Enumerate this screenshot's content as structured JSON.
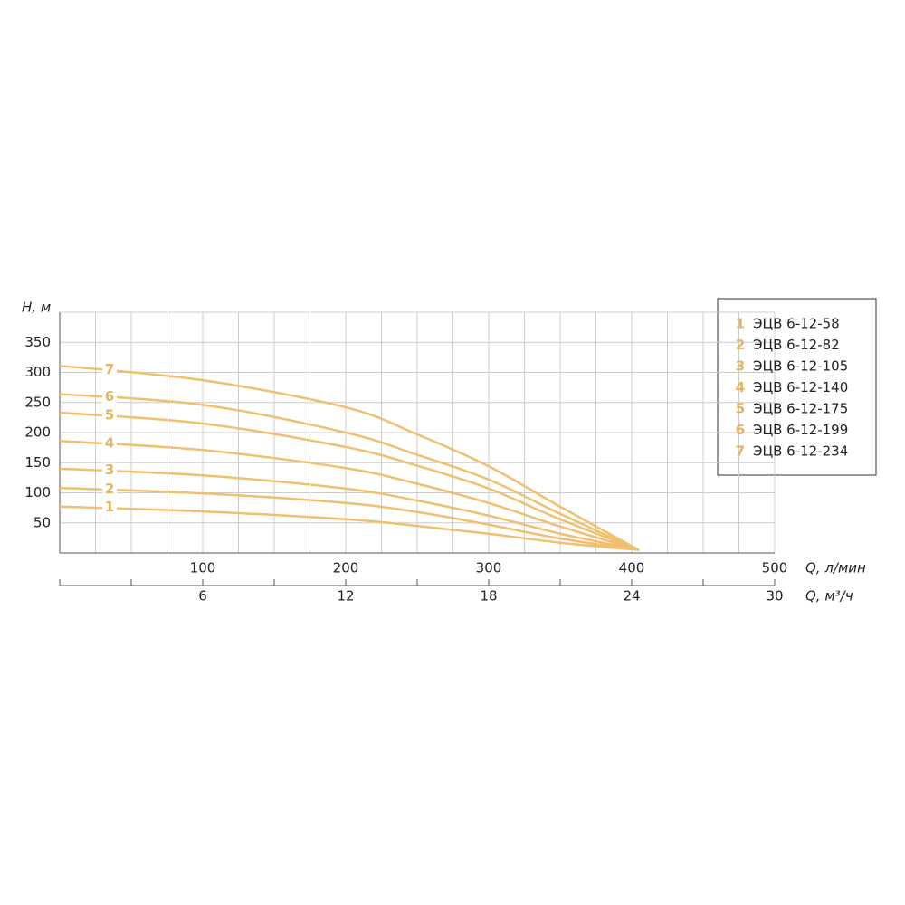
{
  "chart_data": {
    "type": "line",
    "y_label": "H, м",
    "x_label": "Q, л/мин",
    "x2_label": "Q, м³/ч",
    "x": [
      0,
      100,
      200,
      250,
      300,
      350,
      405
    ],
    "xlim": [
      0,
      500
    ],
    "xticks": [
      100,
      200,
      300,
      400,
      500
    ],
    "x2lim": [
      0,
      30
    ],
    "x2ticks": [
      6,
      12,
      18,
      24,
      30
    ],
    "xminor_ticks": [
      0,
      50,
      150,
      250,
      350,
      450
    ],
    "xgrid": [
      25,
      50,
      75,
      100,
      125,
      150,
      175,
      200,
      225,
      250,
      275,
      300,
      325,
      350,
      375,
      400,
      425,
      450,
      475,
      500
    ],
    "ylim": [
      0,
      400
    ],
    "yticks": [
      50,
      100,
      150,
      200,
      250,
      300,
      350
    ],
    "grid": true,
    "legend": "right",
    "series": [
      {
        "label": "1",
        "name": "ЭЦВ 6-12-58",
        "color": "#f0c070",
        "values": [
          77,
          69,
          56,
          45,
          32,
          17,
          5
        ]
      },
      {
        "label": "2",
        "name": "ЭЦВ 6-12-82",
        "color": "#f0c070",
        "values": [
          108,
          99,
          83,
          68,
          47,
          24,
          5
        ]
      },
      {
        "label": "3",
        "name": "ЭЦВ 6-12-105",
        "color": "#f0c070",
        "values": [
          140,
          129,
          107,
          87,
          62,
          32,
          5
        ]
      },
      {
        "label": "4",
        "name": "ЭЦВ 6-12-140",
        "color": "#f0c070",
        "values": [
          186,
          171,
          141,
          115,
          83,
          44,
          5
        ]
      },
      {
        "label": "5",
        "name": "ЭЦВ 6-12-175",
        "color": "#f0c070",
        "values": [
          233,
          215,
          176,
          145,
          107,
          56,
          5
        ]
      },
      {
        "label": "6",
        "name": "ЭЦВ 6-12-199",
        "color": "#f0c070",
        "values": [
          264,
          246,
          200,
          163,
          122,
          65,
          5
        ]
      },
      {
        "label": "7",
        "name": "ЭЦВ 6-12-234",
        "color": "#f0c070",
        "values": [
          311,
          287,
          242,
          197,
          144,
          77,
          5
        ]
      }
    ]
  }
}
